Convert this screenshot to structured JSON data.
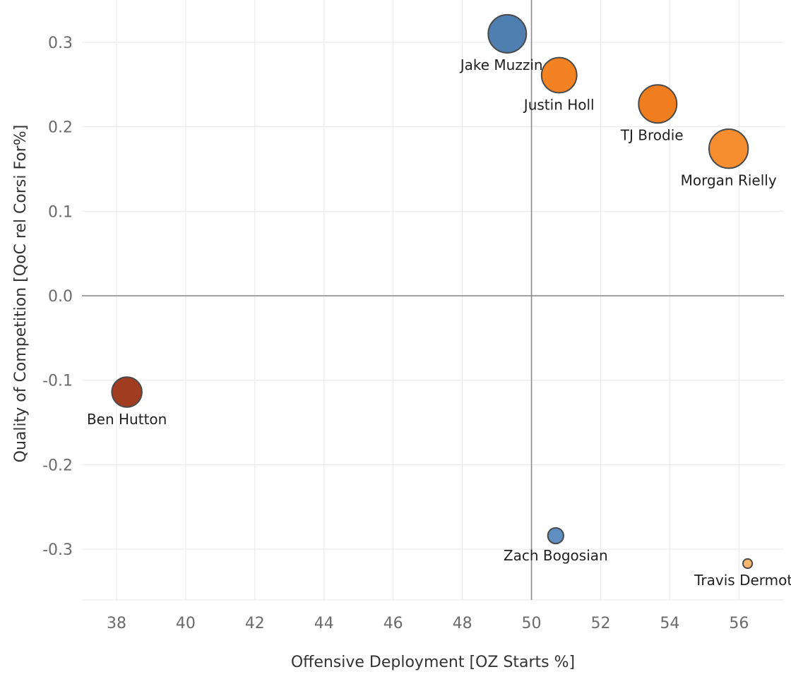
{
  "chart_data": {
    "type": "scatter",
    "title": "",
    "xlabel": "Offensive Deployment [OZ Starts %]",
    "ylabel": "Quality of Competition [QoC rel Corsi For%]",
    "xlim": [
      37.0,
      57.3
    ],
    "ylim": [
      -0.36,
      0.35
    ],
    "x_ticks": [
      38,
      40,
      42,
      44,
      46,
      48,
      50,
      52,
      54,
      56
    ],
    "y_ticks": [
      -0.3,
      -0.2,
      -0.1,
      0.0,
      0.1,
      0.2,
      0.3
    ],
    "x_tick_labels": [
      "38",
      "40",
      "42",
      "44",
      "46",
      "48",
      "50",
      "52",
      "54",
      "56"
    ],
    "y_tick_labels": [
      "-0.3",
      "-0.2",
      "-0.1",
      "0.0",
      "0.1",
      "0.2",
      "0.3"
    ],
    "reference_lines": {
      "x": 50,
      "y": 0.0
    },
    "grid": true,
    "legend": "none",
    "points": [
      {
        "name": "Jake Muzzin",
        "x": 49.3,
        "y": 0.31,
        "size": 1.0,
        "color": "#4e7fb0",
        "label_pos": "below-left"
      },
      {
        "name": "Justin Holl",
        "x": 50.8,
        "y": 0.261,
        "size": 0.85,
        "color": "#f28222",
        "label_pos": "below"
      },
      {
        "name": "TJ Brodie",
        "x": 53.65,
        "y": 0.227,
        "size": 1.0,
        "color": "#f07d1e",
        "label_pos": "below-left"
      },
      {
        "name": "Morgan Rielly",
        "x": 55.7,
        "y": 0.174,
        "size": 1.05,
        "color": "#f68d2e",
        "label_pos": "below"
      },
      {
        "name": "Ben Hutton",
        "x": 38.3,
        "y": -0.114,
        "size": 0.62,
        "color": "#a23c20",
        "label_pos": "below"
      },
      {
        "name": "Zach Bogosian",
        "x": 50.7,
        "y": -0.284,
        "size": 0.17,
        "color": "#5f8fc0",
        "label_pos": "below"
      },
      {
        "name": "Travis Dermott",
        "x": 56.25,
        "y": -0.317,
        "size": 0.06,
        "color": "#f8b76b",
        "label_pos": "below-left"
      }
    ]
  }
}
